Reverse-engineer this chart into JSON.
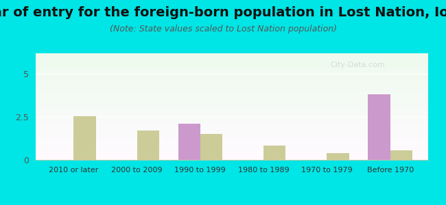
{
  "title": "Year of entry for the foreign-born population in Lost Nation, Iowa",
  "subtitle": "(Note: State values scaled to Lost Nation population)",
  "categories": [
    "2010 or later",
    "2000 to 2009",
    "1990 to 1999",
    "1980 to 1989",
    "1970 to 1979",
    "Before 1970"
  ],
  "lost_nation": [
    0,
    0,
    2.1,
    0,
    0,
    3.8
  ],
  "iowa": [
    2.55,
    1.7,
    1.5,
    0.85,
    0.4,
    0.55
  ],
  "lost_nation_color": "#cc99cc",
  "iowa_color": "#cccc99",
  "ylim": [
    0,
    6.2
  ],
  "yticks": [
    0,
    2.5,
    5
  ],
  "background_color": "#00e5e5",
  "plot_bg_top": "#e8f5e8",
  "plot_bg_bottom": "#f0ffe0",
  "bar_width": 0.35,
  "title_fontsize": 14,
  "subtitle_fontsize": 9,
  "tick_fontsize": 8
}
